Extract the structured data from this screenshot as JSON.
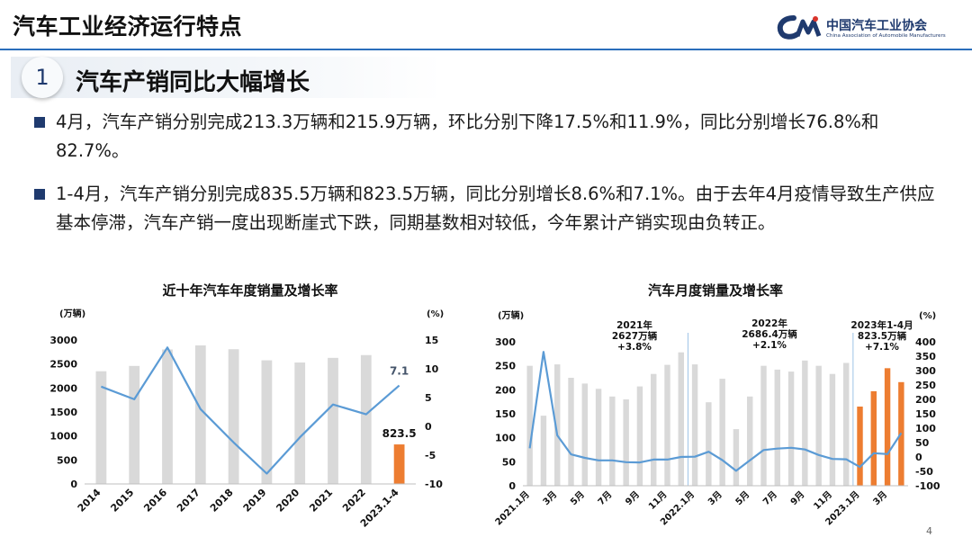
{
  "header": {
    "page_title": "汽车工业经济运行特点",
    "logo_cn": "中国汽车工业协会",
    "logo_en": "China Association of Automobile Manufacturers"
  },
  "section": {
    "number": "1",
    "title": "汽车产销同比大幅增长"
  },
  "bullets": [
    "4月，汽车产销分别完成213.3万辆和215.9万辆，环比分别下降17.5%和11.9%，同比分别增长76.8%和82.7%。",
    "1-4月，汽车产销分别完成835.5万辆和823.5万辆，同比分别增长8.6%和7.1%。由于去年4月疫情导致生产供应基本停滞，汽车产销一度出现断崖式下跌，同期基数相对较低，今年累计产销实现由负转正。"
  ],
  "page_number": "4",
  "chart_data": [
    {
      "type": "bar",
      "title": "近十年汽车年度销量及增长率",
      "left_unit": "(万辆)",
      "right_unit": "(%)",
      "categories": [
        "2014",
        "2015",
        "2016",
        "2017",
        "2018",
        "2019",
        "2020",
        "2021",
        "2022",
        "2023.1-4"
      ],
      "series": [
        {
          "kind": "bar",
          "axis": "left",
          "values": [
            2349,
            2460,
            2803,
            2888,
            2808,
            2577,
            2531,
            2628,
            2686,
            823.5
          ]
        },
        {
          "kind": "line",
          "axis": "right",
          "values": [
            6.9,
            4.7,
            13.7,
            3.0,
            -2.8,
            -8.2,
            -1.9,
            3.8,
            2.1,
            7.1
          ]
        }
      ],
      "highlight_color": "#ed7d31",
      "bar_color": "#d9d9d9",
      "line_color": "#5b9bd5",
      "data_labels": {
        "bar_last": "823.5",
        "line_last": "7.1"
      },
      "ylim_left": [
        0,
        3000
      ],
      "ylim_right": [
        -10,
        15
      ],
      "left_ticks": [
        "0",
        "500",
        "1000",
        "1500",
        "2000",
        "2500",
        "3000"
      ],
      "right_ticks": [
        "-10",
        "-5",
        "0",
        "5",
        "10",
        "15"
      ]
    },
    {
      "type": "bar",
      "title": "汽车月度销量及增长率",
      "left_unit": "(万辆)",
      "right_unit": "(%)",
      "categories": [
        "2021.1月",
        "2月",
        "3月",
        "4月",
        "5月",
        "6月",
        "7月",
        "8月",
        "9月",
        "10月",
        "11月",
        "12月",
        "2022.1月",
        "2月",
        "3月",
        "4月",
        "5月",
        "6月",
        "7月",
        "8月",
        "9月",
        "10月",
        "11月",
        "12月",
        "2023.1月",
        "2月",
        "3月",
        "4月"
      ],
      "x_tick_labels": [
        "2021.1月",
        "",
        "3月",
        "",
        "5月",
        "",
        "7月",
        "",
        "9月",
        "",
        "11月",
        "",
        "2022.1月",
        "",
        "3月",
        "",
        "5月",
        "",
        "7月",
        "",
        "9月",
        "",
        "11月",
        "",
        "2023.1月",
        "",
        "3月",
        ""
      ],
      "series": [
        {
          "kind": "bar",
          "axis": "left",
          "values": [
            250,
            146,
            253,
            225,
            213,
            202,
            186,
            180,
            207,
            233,
            252,
            278,
            253,
            174,
            223,
            118,
            186,
            250,
            242,
            238,
            261,
            250,
            233,
            256,
            165,
            197,
            245,
            216
          ]
        },
        {
          "kind": "line",
          "axis": "right",
          "values": [
            30,
            365,
            75,
            9,
            -3,
            -12,
            -12,
            -18,
            -19,
            -9,
            -9,
            0,
            1,
            18,
            -11,
            -48,
            -12,
            24,
            29,
            32,
            26,
            7,
            -7,
            -8,
            -35,
            13,
            10,
            83
          ]
        }
      ],
      "highlight_from": 24,
      "highlight_color": "#ed7d31",
      "bar_color": "#d9d9d9",
      "line_color": "#5b9bd5",
      "ylim_left": [
        0,
        300
      ],
      "ylim_right": [
        -100,
        400
      ],
      "left_ticks": [
        "0",
        "50",
        "100",
        "150",
        "200",
        "250",
        "300"
      ],
      "right_ticks": [
        "-100",
        "-50",
        "0",
        "50",
        "100",
        "150",
        "200",
        "250",
        "300",
        "350",
        "400"
      ],
      "annotations": [
        {
          "lines": [
            "2021年",
            "2627万辆",
            "+3.8%"
          ]
        },
        {
          "lines": [
            "2022年",
            "2686.4万辆",
            "+2.1%"
          ]
        },
        {
          "lines": [
            "2023年1-4月",
            "823.5万辆",
            "+7.1%"
          ]
        }
      ]
    }
  ]
}
